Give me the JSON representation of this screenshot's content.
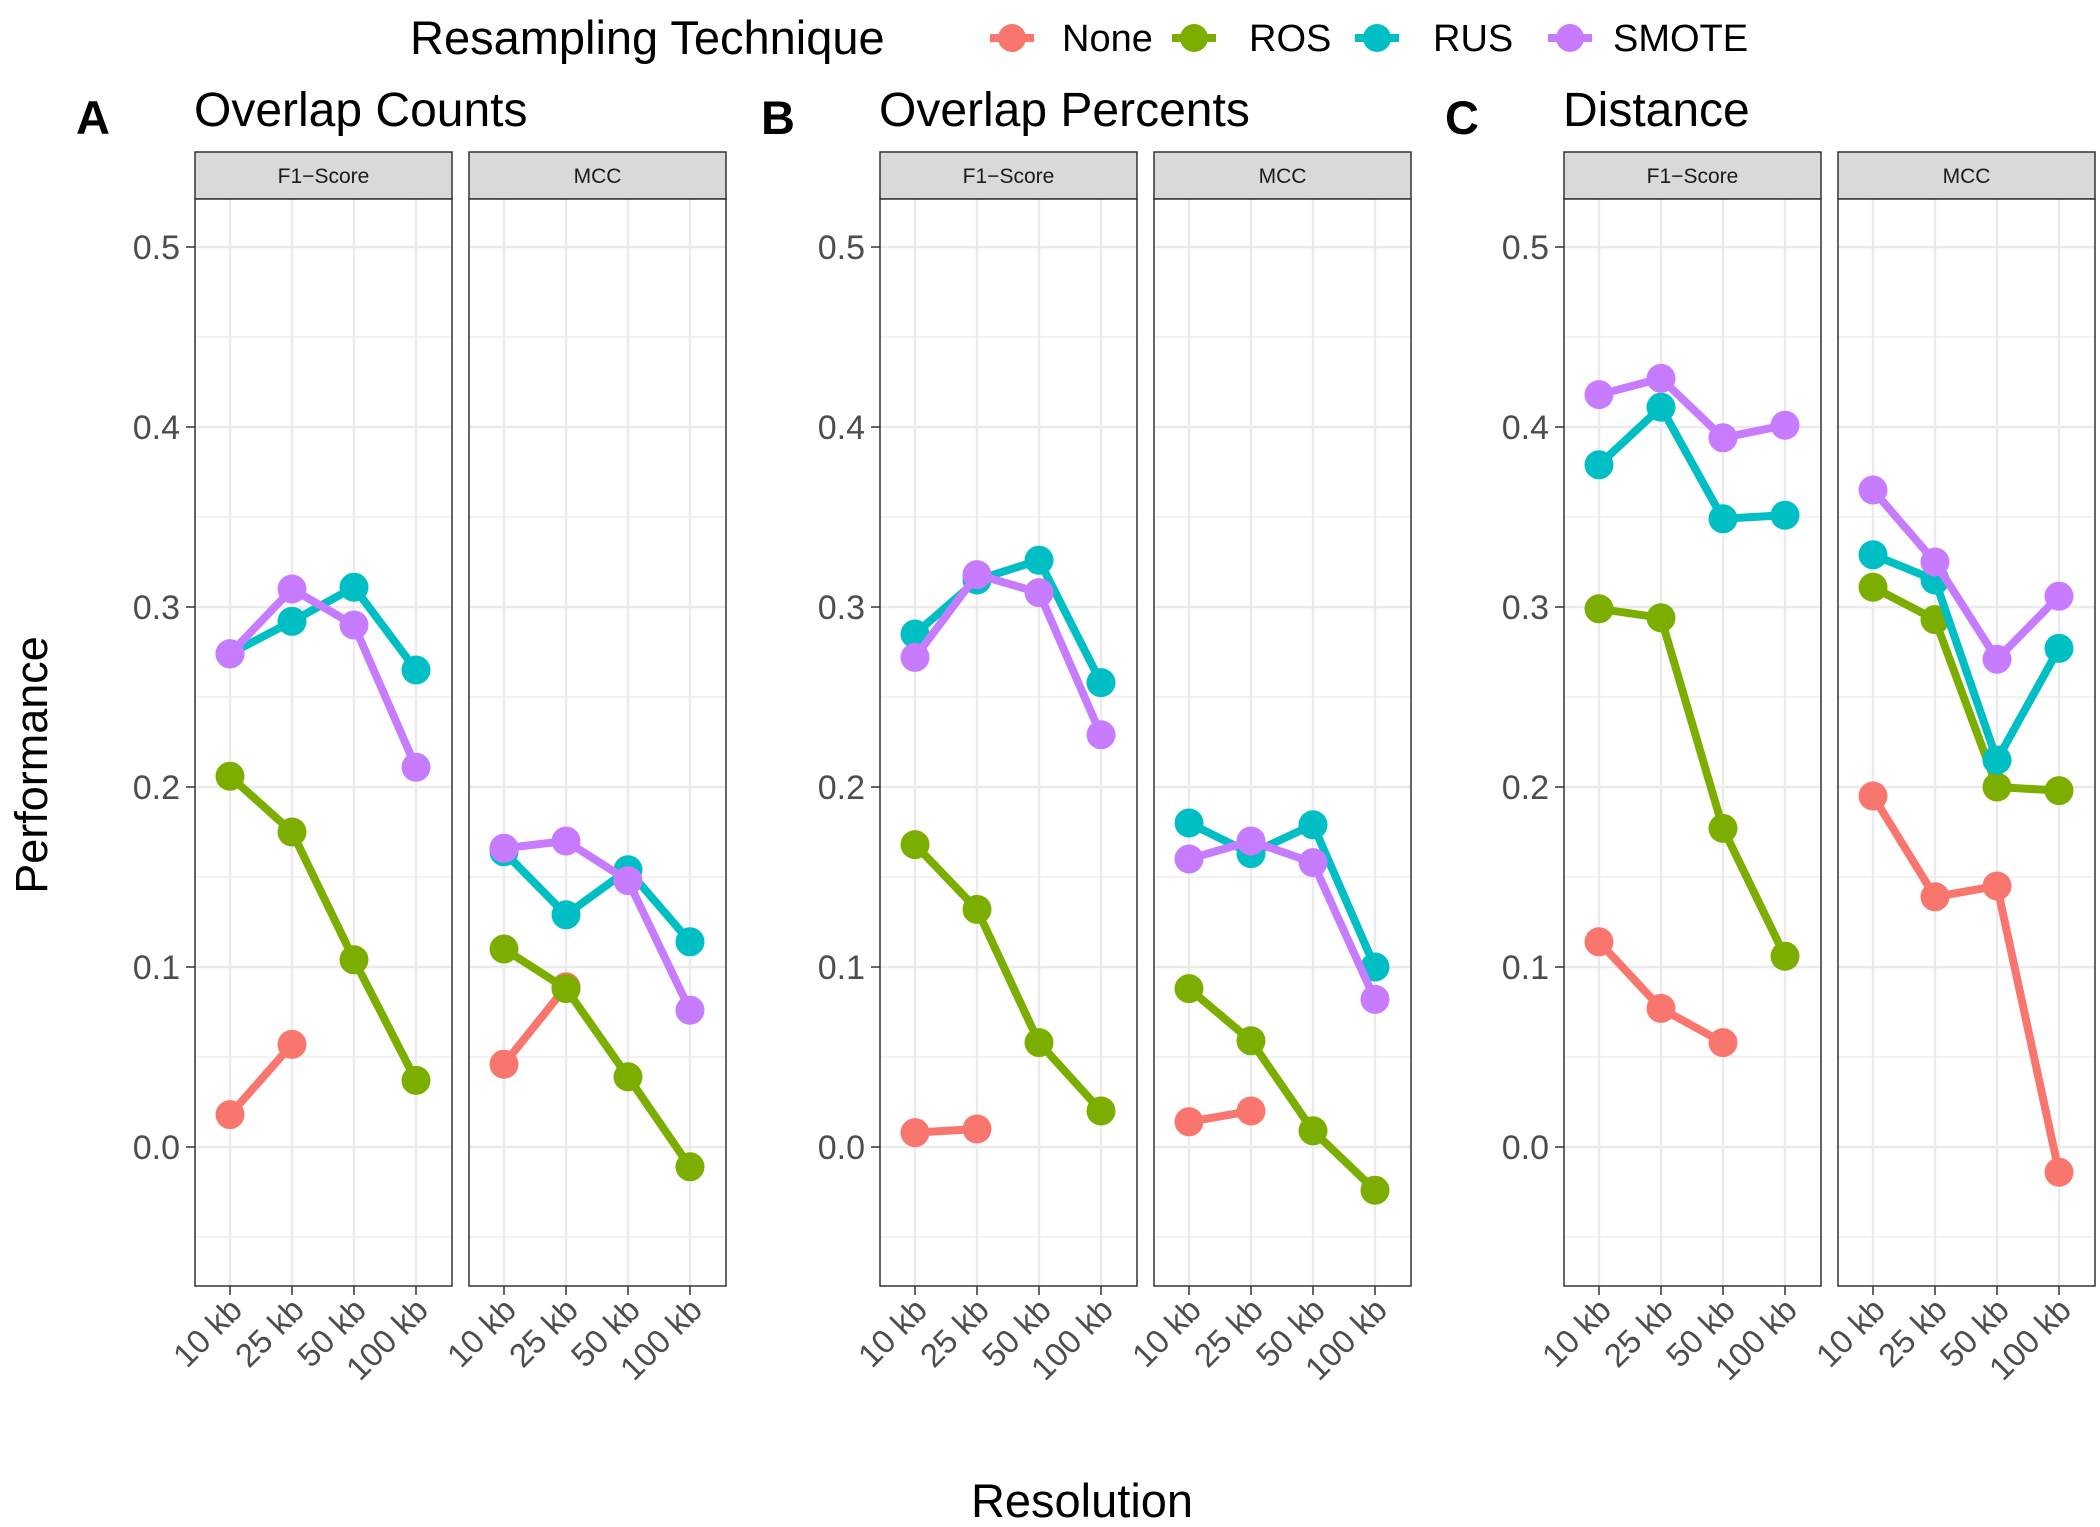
{
  "legend": {
    "title": "Resampling Technique",
    "items": [
      {
        "name": "None",
        "color": "#F8766D"
      },
      {
        "name": "ROS",
        "color": "#7CAE00"
      },
      {
        "name": "RUS",
        "color": "#00BFC4"
      },
      {
        "name": "SMOTE",
        "color": "#C77CFF"
      }
    ]
  },
  "axes": {
    "xlabel": "Resolution",
    "ylabel": "Performance"
  },
  "chart_data": {
    "type": "line",
    "categories": [
      "10 kb",
      "25 kb",
      "50 kb",
      "100 kb"
    ],
    "ylim": [
      -0.075,
      0.525
    ],
    "yticks": [
      0.0,
      0.1,
      0.2,
      0.3,
      0.4,
      0.5
    ],
    "ytick_labels": [
      "0.0",
      "0.1",
      "0.2",
      "0.3",
      "0.4",
      "0.5"
    ],
    "grid": true,
    "legend_position": "top",
    "panels": [
      {
        "letter": "A",
        "title": "Overlap Counts",
        "facets": [
          {
            "strip": "F1−Score",
            "series": [
              {
                "name": "None",
                "values": [
                  0.018,
                  0.057,
                  null,
                  null
                ]
              },
              {
                "name": "ROS",
                "values": [
                  0.206,
                  0.175,
                  0.104,
                  0.037
                ]
              },
              {
                "name": "RUS",
                "values": [
                  0.274,
                  0.292,
                  0.311,
                  0.265
                ]
              },
              {
                "name": "SMOTE",
                "values": [
                  0.274,
                  0.31,
                  0.29,
                  0.211
                ]
              }
            ]
          },
          {
            "strip": "MCC",
            "series": [
              {
                "name": "None",
                "values": [
                  0.046,
                  0.089,
                  null,
                  null
                ]
              },
              {
                "name": "ROS",
                "values": [
                  0.11,
                  0.088,
                  0.039,
                  -0.011
                ]
              },
              {
                "name": "RUS",
                "values": [
                  0.164,
                  0.129,
                  0.154,
                  0.114
                ]
              },
              {
                "name": "SMOTE",
                "values": [
                  0.166,
                  0.17,
                  0.148,
                  0.076
                ]
              }
            ]
          }
        ]
      },
      {
        "letter": "B",
        "title": "Overlap Percents",
        "facets": [
          {
            "strip": "F1−Score",
            "series": [
              {
                "name": "None",
                "values": [
                  0.008,
                  0.01,
                  null,
                  null
                ]
              },
              {
                "name": "ROS",
                "values": [
                  0.168,
                  0.132,
                  0.058,
                  0.02
                ]
              },
              {
                "name": "RUS",
                "values": [
                  0.285,
                  0.315,
                  0.326,
                  0.258
                ]
              },
              {
                "name": "SMOTE",
                "values": [
                  0.272,
                  0.318,
                  0.308,
                  0.229
                ]
              }
            ]
          },
          {
            "strip": "MCC",
            "series": [
              {
                "name": "None",
                "values": [
                  0.014,
                  0.02,
                  null,
                  null
                ]
              },
              {
                "name": "ROS",
                "values": [
                  0.088,
                  0.059,
                  0.009,
                  -0.024
                ]
              },
              {
                "name": "RUS",
                "values": [
                  0.18,
                  0.163,
                  0.179,
                  0.1
                ]
              },
              {
                "name": "SMOTE",
                "values": [
                  0.16,
                  0.17,
                  0.158,
                  0.082
                ]
              }
            ]
          }
        ]
      },
      {
        "letter": "C",
        "title": "Distance",
        "facets": [
          {
            "strip": "F1−Score",
            "series": [
              {
                "name": "None",
                "values": [
                  0.114,
                  0.077,
                  0.058,
                  null
                ]
              },
              {
                "name": "ROS",
                "values": [
                  0.299,
                  0.294,
                  0.177,
                  0.106
                ]
              },
              {
                "name": "RUS",
                "values": [
                  0.379,
                  0.411,
                  0.349,
                  0.351
                ]
              },
              {
                "name": "SMOTE",
                "values": [
                  0.418,
                  0.427,
                  0.394,
                  0.401
                ]
              }
            ]
          },
          {
            "strip": "MCC",
            "series": [
              {
                "name": "None",
                "values": [
                  0.195,
                  0.139,
                  0.145,
                  -0.014
                ]
              },
              {
                "name": "ROS",
                "values": [
                  0.311,
                  0.293,
                  0.2,
                  0.198
                ]
              },
              {
                "name": "RUS",
                "values": [
                  0.329,
                  0.315,
                  0.215,
                  0.277
                ]
              },
              {
                "name": "SMOTE",
                "values": [
                  0.365,
                  0.325,
                  0.271,
                  0.306
                ]
              }
            ]
          }
        ]
      }
    ]
  }
}
